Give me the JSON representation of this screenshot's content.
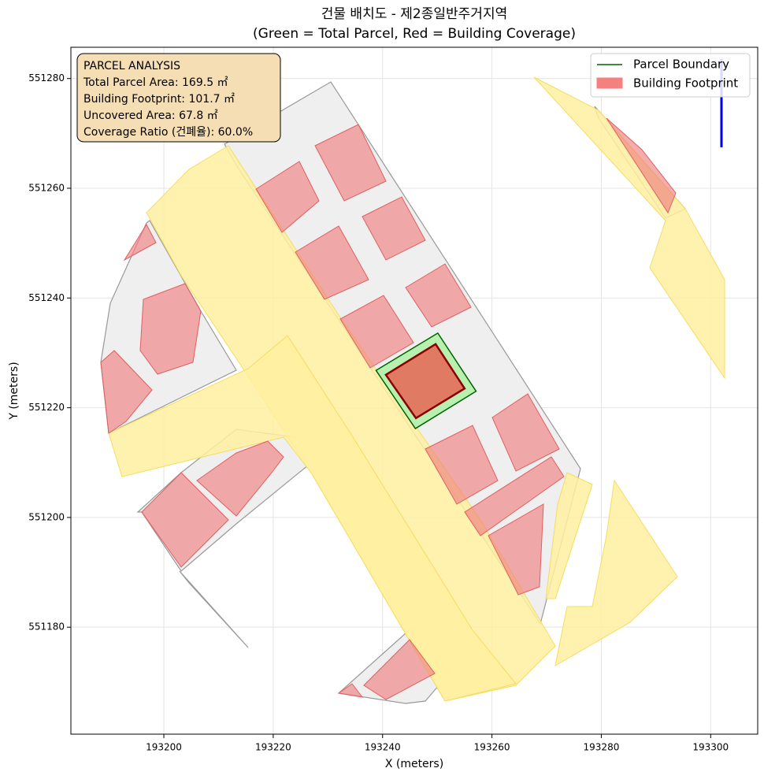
{
  "chart_data": {
    "type": "site-plan",
    "title": "건물 배치도 - 제2종일반주거지역",
    "subtitle": "(Green = Total Parcel, Red = Building Coverage)",
    "x_label": "X (meters)",
    "y_label": "Y (meters)",
    "xlim": [
      193183.0,
      193308.6
    ],
    "ylim": [
      551160.5,
      551285.7
    ],
    "xticks": [
      193200,
      193220,
      193240,
      193260,
      193280,
      193300
    ],
    "yticks": [
      551180,
      551200,
      551220,
      551240,
      551260,
      551280
    ],
    "grid": true,
    "legend": "upper right",
    "annotation": [
      "PARCEL ANALYSIS",
      "Total Parcel Area: 169.5 ㎡",
      "Building Footprint: 101.7 ㎡",
      "Uncovered Area: 67.8 ㎡",
      "Coverage Ratio (건폐율): 60.0%"
    ],
    "series": [
      {
        "name": "Parcel Boundary",
        "color": "#006400",
        "fill": "#b8f0b0",
        "x": [
          193238.8,
          193250.1,
          193257.1,
          193246.0
        ],
        "y": [
          551226.8,
          551233.6,
          551223.0,
          551216.2
        ]
      },
      {
        "name": "Building Footprint",
        "color": "#8b0000",
        "fill": "#e07a62",
        "legend_fill": "#f58080",
        "x": [
          193240.6,
          193249.7,
          193255.0,
          193246.1
        ],
        "y": [
          551226.0,
          551231.6,
          551223.5,
          551218.1
        ]
      }
    ]
  }
}
